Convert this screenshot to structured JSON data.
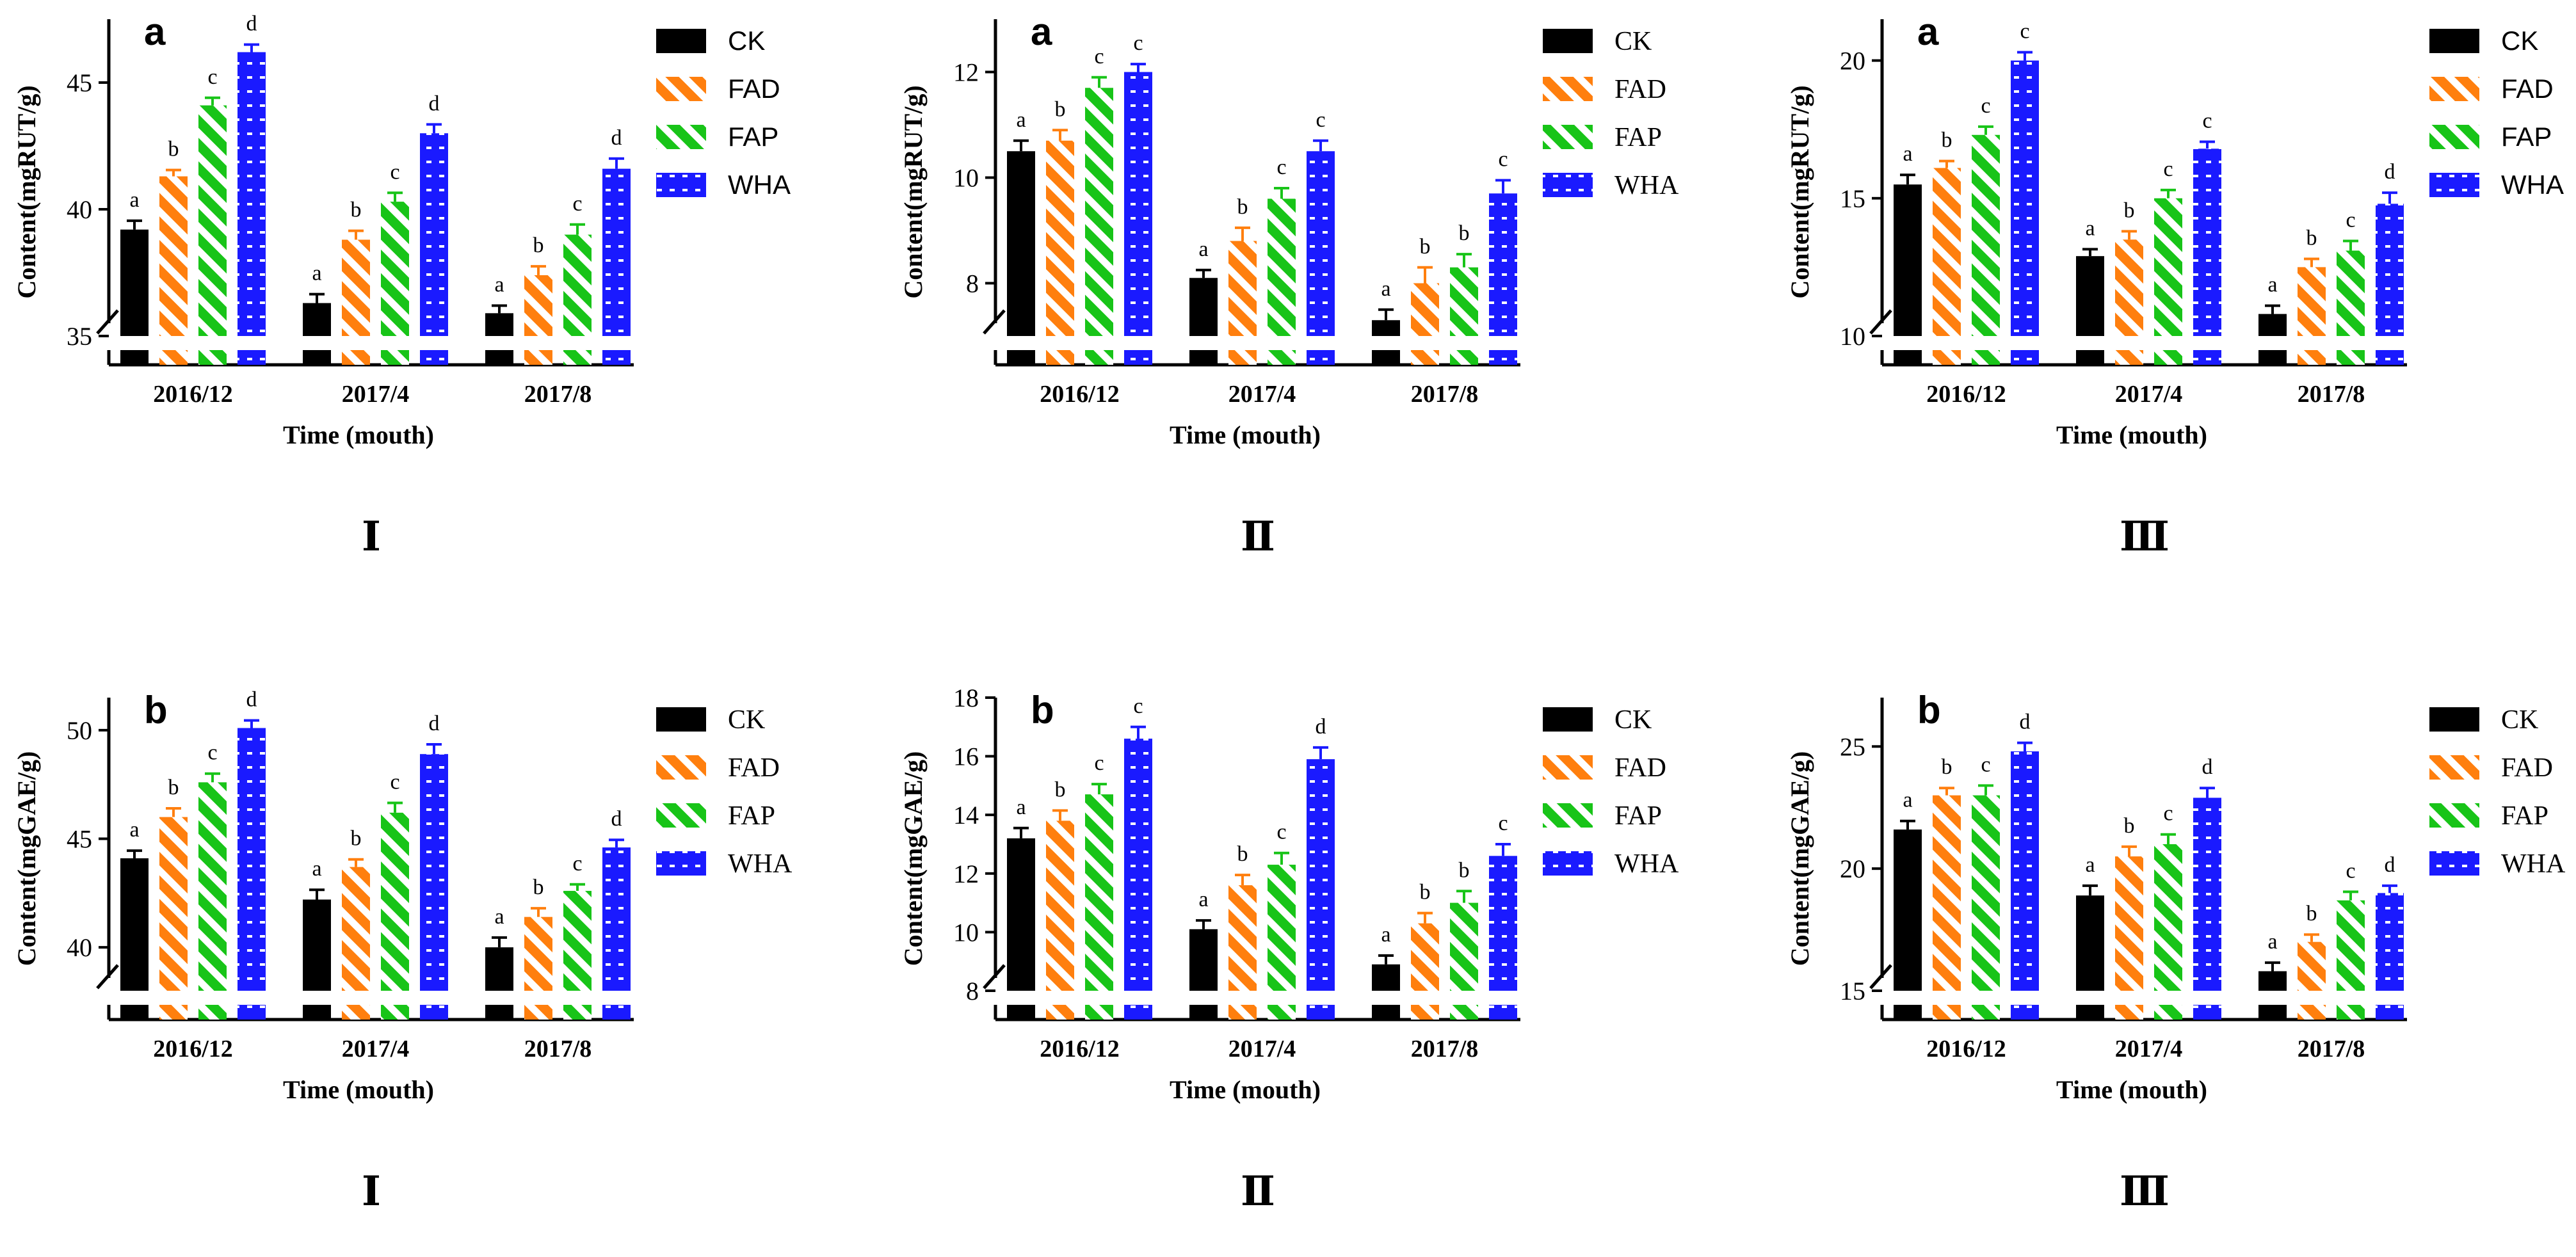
{
  "chart_data": [
    {
      "type": "bar",
      "panel_letter": "a",
      "roman": "Ⅰ",
      "title": "",
      "xlabel": "Time (mouth)",
      "ylabel": "Content(mgRUT/g)",
      "ylim": [
        35,
        47.5
      ],
      "yticks": [
        35,
        40,
        45
      ],
      "categories": [
        "2016/12",
        "2017/4",
        "2017/8"
      ],
      "legend_font": "sans",
      "series": [
        {
          "name": "CK",
          "values": [
            39.2,
            36.3,
            35.9
          ],
          "errors": [
            0.35,
            0.35,
            0.3
          ],
          "letters": [
            "a",
            "a",
            "a"
          ]
        },
        {
          "name": "FAD",
          "values": [
            41.3,
            38.8,
            37.4
          ],
          "errors": [
            0.25,
            0.35,
            0.35
          ],
          "letters": [
            "b",
            "b",
            "b"
          ]
        },
        {
          "name": "FAP",
          "values": [
            44.1,
            40.3,
            39.0
          ],
          "errors": [
            0.3,
            0.35,
            0.4
          ],
          "letters": [
            "c",
            "c",
            "c"
          ]
        },
        {
          "name": "WHA",
          "values": [
            46.2,
            43.0,
            41.6
          ],
          "errors": [
            0.3,
            0.35,
            0.4
          ],
          "letters": [
            "d",
            "d",
            "d"
          ]
        }
      ]
    },
    {
      "type": "bar",
      "panel_letter": "a",
      "roman": "Ⅱ",
      "title": "",
      "xlabel": "Time (mouth)",
      "ylabel": "Content(mgRUT/g)",
      "ylim": [
        7,
        13
      ],
      "yticks": [
        8,
        10,
        12
      ],
      "categories": [
        "2016/12",
        "2017/4",
        "2017/8"
      ],
      "legend_font": "serif",
      "series": [
        {
          "name": "CK",
          "values": [
            10.5,
            8.1,
            7.3
          ],
          "errors": [
            0.2,
            0.15,
            0.2
          ],
          "letters": [
            "a",
            "a",
            "a"
          ]
        },
        {
          "name": "FAD",
          "values": [
            10.7,
            8.8,
            8.0
          ],
          "errors": [
            0.2,
            0.25,
            0.3
          ],
          "letters": [
            "b",
            "b",
            "b"
          ]
        },
        {
          "name": "FAP",
          "values": [
            11.7,
            9.6,
            8.3
          ],
          "errors": [
            0.2,
            0.2,
            0.25
          ],
          "letters": [
            "c",
            "c",
            "b"
          ]
        },
        {
          "name": "WHA",
          "values": [
            12.0,
            10.5,
            9.7
          ],
          "errors": [
            0.15,
            0.2,
            0.25
          ],
          "letters": [
            "c",
            "c",
            "c"
          ]
        }
      ]
    },
    {
      "type": "bar",
      "panel_letter": "a",
      "roman": "Ⅲ",
      "title": "",
      "xlabel": "Time (mouth)",
      "ylabel": "Content(mgRUT/g)",
      "ylim": [
        10,
        21.5
      ],
      "yticks": [
        10,
        15,
        20
      ],
      "categories": [
        "2016/12",
        "2017/4",
        "2017/8"
      ],
      "legend_font": "sans",
      "series": [
        {
          "name": "CK",
          "values": [
            15.5,
            12.9,
            10.8
          ],
          "errors": [
            0.35,
            0.25,
            0.3
          ],
          "letters": [
            "a",
            "a",
            "a"
          ]
        },
        {
          "name": "FAD",
          "values": [
            16.1,
            13.5,
            12.5
          ],
          "errors": [
            0.25,
            0.3,
            0.3
          ],
          "letters": [
            "b",
            "b",
            "b"
          ]
        },
        {
          "name": "FAP",
          "values": [
            17.3,
            15.0,
            13.1
          ],
          "errors": [
            0.3,
            0.3,
            0.35
          ],
          "letters": [
            "c",
            "c",
            "c"
          ]
        },
        {
          "name": "WHA",
          "values": [
            20.0,
            16.8,
            14.8
          ],
          "errors": [
            0.3,
            0.25,
            0.4
          ],
          "letters": [
            "c",
            "c",
            "d"
          ]
        }
      ]
    },
    {
      "type": "bar",
      "panel_letter": "b",
      "roman": "Ⅰ",
      "title": "",
      "xlabel": "Time (mouth)",
      "ylabel": "Content(mgGAE/g)",
      "ylim": [
        38,
        51.5
      ],
      "yticks": [
        40,
        45,
        50
      ],
      "categories": [
        "2016/12",
        "2017/4",
        "2017/8"
      ],
      "legend_font": "serif",
      "series": [
        {
          "name": "CK",
          "values": [
            44.1,
            42.2,
            40.0
          ],
          "errors": [
            0.35,
            0.45,
            0.45
          ],
          "letters": [
            "a",
            "a",
            "a"
          ]
        },
        {
          "name": "FAD",
          "values": [
            46.0,
            43.7,
            41.4
          ],
          "errors": [
            0.4,
            0.35,
            0.4
          ],
          "letters": [
            "b",
            "b",
            "b"
          ]
        },
        {
          "name": "FAP",
          "values": [
            47.6,
            46.2,
            42.6
          ],
          "errors": [
            0.4,
            0.45,
            0.3
          ],
          "letters": [
            "c",
            "c",
            "c"
          ]
        },
        {
          "name": "WHA",
          "values": [
            50.1,
            48.9,
            44.6
          ],
          "errors": [
            0.35,
            0.45,
            0.35
          ],
          "letters": [
            "d",
            "d",
            "d"
          ]
        }
      ]
    },
    {
      "type": "bar",
      "panel_letter": "b",
      "roman": "Ⅱ",
      "title": "",
      "xlabel": "Time (mouth)",
      "ylabel": "Content(mgGAE/g)",
      "ylim": [
        8,
        18
      ],
      "yticks": [
        8,
        10,
        12,
        14,
        16,
        18
      ],
      "categories": [
        "2016/12",
        "2017/4",
        "2017/8"
      ],
      "legend_font": "serif",
      "series": [
        {
          "name": "CK",
          "values": [
            13.2,
            10.1,
            8.9
          ],
          "errors": [
            0.35,
            0.3,
            0.3
          ],
          "letters": [
            "a",
            "a",
            "a"
          ]
        },
        {
          "name": "FAD",
          "values": [
            13.8,
            11.6,
            10.3
          ],
          "errors": [
            0.35,
            0.35,
            0.35
          ],
          "letters": [
            "b",
            "b",
            "b"
          ]
        },
        {
          "name": "FAP",
          "values": [
            14.7,
            12.3,
            11.0
          ],
          "errors": [
            0.35,
            0.4,
            0.4
          ],
          "letters": [
            "c",
            "c",
            "b"
          ]
        },
        {
          "name": "WHA",
          "values": [
            16.6,
            15.9,
            12.6
          ],
          "errors": [
            0.4,
            0.4,
            0.4
          ],
          "letters": [
            "c",
            "d",
            "c"
          ]
        }
      ]
    },
    {
      "type": "bar",
      "panel_letter": "b",
      "roman": "Ⅲ",
      "title": "",
      "xlabel": "Time (mouth)",
      "ylabel": "Content(mgGAE/g)",
      "ylim": [
        15,
        27
      ],
      "yticks": [
        15,
        20,
        25
      ],
      "categories": [
        "2016/12",
        "2017/4",
        "2017/8"
      ],
      "legend_font": "serif",
      "series": [
        {
          "name": "CK",
          "values": [
            21.6,
            18.9,
            15.8
          ],
          "errors": [
            0.35,
            0.4,
            0.35
          ],
          "letters": [
            "a",
            "a",
            "a"
          ]
        },
        {
          "name": "FAD",
          "values": [
            23.0,
            20.5,
            17.0
          ],
          "errors": [
            0.3,
            0.4,
            0.3
          ],
          "letters": [
            "b",
            "b",
            "b"
          ]
        },
        {
          "name": "FAP",
          "values": [
            23.0,
            21.0,
            18.7
          ],
          "errors": [
            0.4,
            0.4,
            0.35
          ],
          "letters": [
            "c",
            "c",
            "c"
          ]
        },
        {
          "name": "WHA",
          "values": [
            24.8,
            22.9,
            19.0
          ],
          "errors": [
            0.35,
            0.4,
            0.3
          ],
          "letters": [
            "d",
            "d",
            "d"
          ]
        }
      ]
    }
  ],
  "series_colors": {
    "CK": "#000000",
    "FAD": "#ff7f0e",
    "FAP": "#18c418",
    "WHA": "#1a1aff"
  },
  "series_patterns": {
    "CK": "solid",
    "FAD": "diagonal-stripes",
    "FAP": "diagonal-stripes",
    "WHA": "horizontal-stripes"
  }
}
